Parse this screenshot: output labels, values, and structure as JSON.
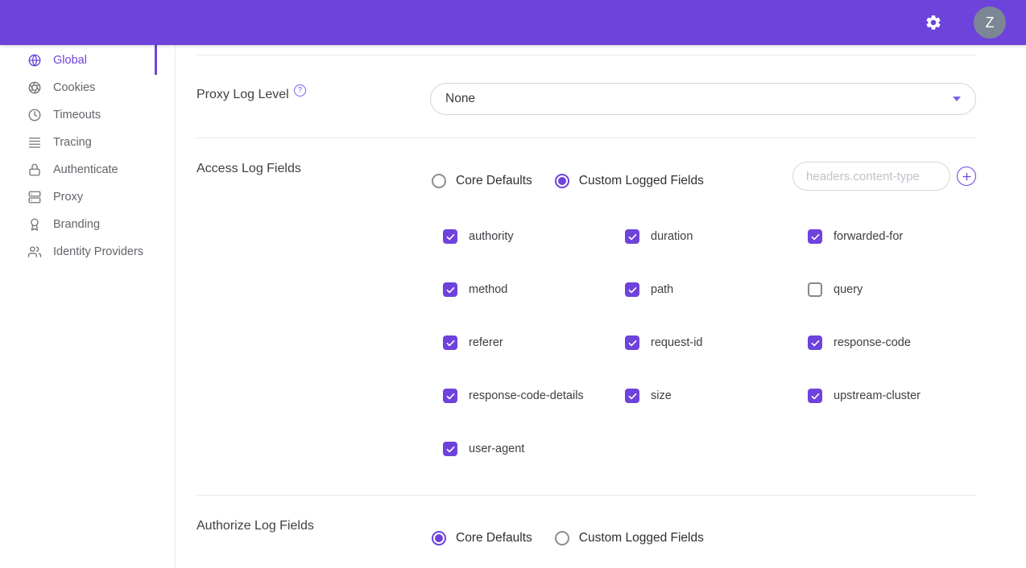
{
  "colors": {
    "accent": "#6D43DB",
    "header_bg": "#6D43DB",
    "avatar_bg": "#7B8794"
  },
  "header": {
    "avatar_text": "Z"
  },
  "sidebar": {
    "items": [
      {
        "label": "Global",
        "icon": "globe",
        "active": true
      },
      {
        "label": "Cookies",
        "icon": "cookie",
        "active": false
      },
      {
        "label": "Timeouts",
        "icon": "clock",
        "active": false
      },
      {
        "label": "Tracing",
        "icon": "lines",
        "active": false
      },
      {
        "label": "Authenticate",
        "icon": "lock",
        "active": false
      },
      {
        "label": "Proxy",
        "icon": "server",
        "active": false
      },
      {
        "label": "Branding",
        "icon": "award",
        "active": false
      },
      {
        "label": "Identity Providers",
        "icon": "users",
        "active": false
      }
    ]
  },
  "main": {
    "proxy_log_level": {
      "label": "Proxy Log Level",
      "value": "None"
    },
    "access_log_fields": {
      "label": "Access Log Fields",
      "options": [
        "Core Defaults",
        "Custom Logged Fields"
      ],
      "selected": "Custom Logged Fields",
      "input_placeholder": "headers.content-type",
      "checkboxes": [
        {
          "label": "authority",
          "checked": true
        },
        {
          "label": "duration",
          "checked": true
        },
        {
          "label": "forwarded-for",
          "checked": true
        },
        {
          "label": "method",
          "checked": true
        },
        {
          "label": "path",
          "checked": true
        },
        {
          "label": "query",
          "checked": false
        },
        {
          "label": "referer",
          "checked": true
        },
        {
          "label": "request-id",
          "checked": true
        },
        {
          "label": "response-code",
          "checked": true
        },
        {
          "label": "response-code-details",
          "checked": true
        },
        {
          "label": "size",
          "checked": true
        },
        {
          "label": "upstream-cluster",
          "checked": true
        },
        {
          "label": "user-agent",
          "checked": true
        }
      ]
    },
    "authorize_log_fields": {
      "label": "Authorize Log Fields",
      "options": [
        "Core Defaults",
        "Custom Logged Fields"
      ],
      "selected": "Core Defaults"
    }
  }
}
